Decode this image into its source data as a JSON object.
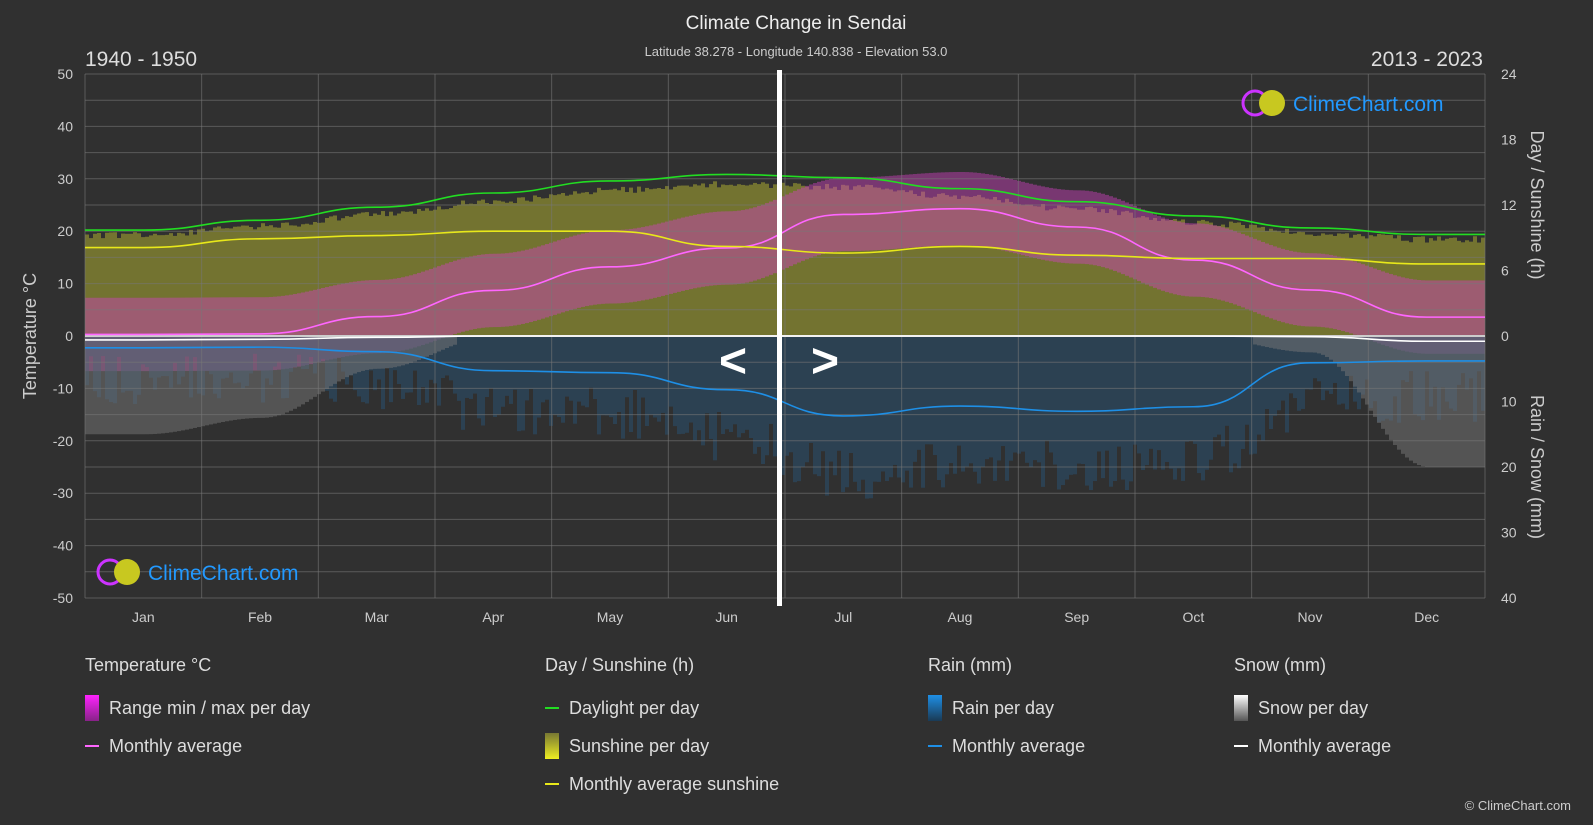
{
  "chart_data": {
    "type": "line",
    "title": "Climate Change in Sendai",
    "subtitle": "Latitude 38.278 - Longitude 140.838 - Elevation 53.0",
    "period_left": "1940 - 1950",
    "period_right": "2013 - 2023",
    "nav_prev": "<",
    "nav_next": ">",
    "categories": [
      "Jan",
      "Feb",
      "Mar",
      "Apr",
      "May",
      "Jun",
      "Jul",
      "Aug",
      "Sep",
      "Oct",
      "Nov",
      "Dec"
    ],
    "y_left": {
      "label": "Temperature °C",
      "range": [
        -50,
        50
      ],
      "ticks": [
        50,
        40,
        30,
        20,
        10,
        0,
        -10,
        -20,
        -30,
        -40,
        -50
      ]
    },
    "y_right_top": {
      "label": "Day / Sunshine (h)",
      "range": [
        0,
        24
      ],
      "ticks": [
        24,
        18,
        12,
        6,
        0
      ]
    },
    "y_right_bottom": {
      "label": "Rain / Snow (mm)",
      "range": [
        0,
        40
      ],
      "ticks": [
        0,
        10,
        20,
        30,
        40
      ]
    },
    "grid": true,
    "series": [
      {
        "name": "Monthly average",
        "group": "temperature",
        "unit": "°C",
        "color": "#ff66ff",
        "values": [
          0.3,
          0.4,
          3.7,
          8.7,
          13.2,
          16.8,
          23.2,
          24.3,
          20.8,
          14.5,
          8.8,
          3.6
        ]
      },
      {
        "name": "Daylight per day",
        "group": "sunshine",
        "unit": "h",
        "color": "#22dd22",
        "values": [
          9.7,
          10.6,
          11.8,
          13.1,
          14.2,
          14.8,
          14.5,
          13.5,
          12.3,
          11.0,
          9.9,
          9.3
        ]
      },
      {
        "name": "Monthly average sunshine",
        "group": "sunshine",
        "unit": "h",
        "color": "#e8e81a",
        "values": [
          8.1,
          8.9,
          9.2,
          9.6,
          9.6,
          8.2,
          7.6,
          8.2,
          7.4,
          7.1,
          7.1,
          6.6
        ]
      },
      {
        "name": "Monthly average",
        "group": "rain",
        "unit": "mm",
        "color": "#1e8fe6",
        "values": [
          1.8,
          1.7,
          2.4,
          5.3,
          5.6,
          8.2,
          12.2,
          10.7,
          11.5,
          10.8,
          4.1,
          3.8
        ]
      },
      {
        "name": "Monthly average",
        "group": "snow",
        "unit": "mm",
        "color": "#ffffff",
        "values": [
          0.6,
          0.5,
          0.2,
          0,
          0,
          0,
          0,
          0,
          0,
          0,
          0.1,
          0.8
        ]
      }
    ],
    "legend_placement": "bottom"
  },
  "legend": {
    "temperature": {
      "title": "Temperature °C",
      "range": "Range min / max per day",
      "avg": "Monthly average"
    },
    "sunshine": {
      "title": "Day / Sunshine (h)",
      "daylight": "Daylight per day",
      "sunshine": "Sunshine per day",
      "avg": "Monthly average sunshine"
    },
    "rain": {
      "title": "Rain (mm)",
      "per_day": "Rain per day",
      "avg": "Monthly average"
    },
    "snow": {
      "title": "Snow (mm)",
      "per_day": "Snow per day",
      "avg": "Monthly average"
    }
  },
  "brand": "ClimeChart.com",
  "copyright": "© ClimeChart.com"
}
